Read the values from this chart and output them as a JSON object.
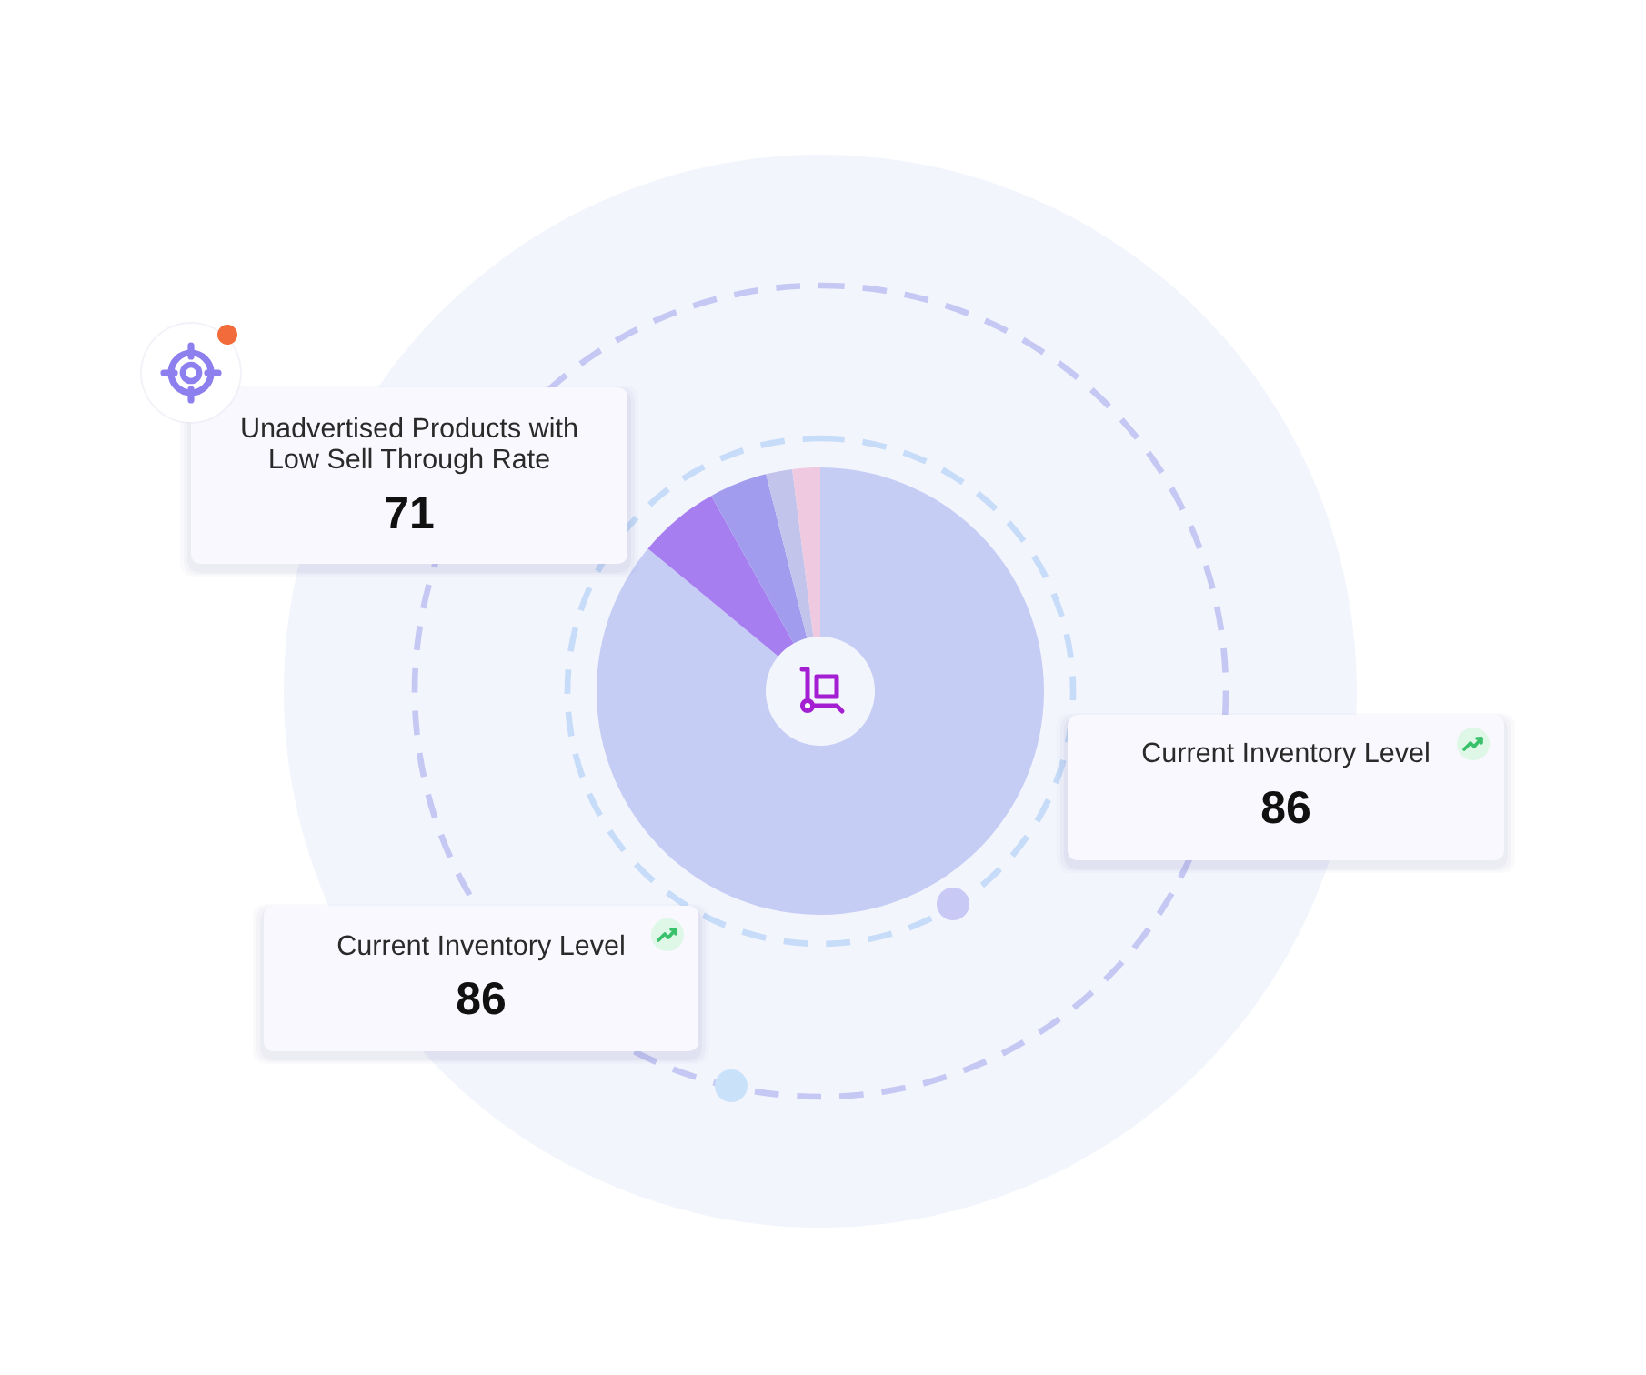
{
  "chart_data": [
    {
      "type": "donut",
      "categories": [
        null,
        null,
        null,
        null,
        null
      ],
      "values": [
        86.0,
        5.9,
        4.2,
        1.9,
        2.0
      ],
      "colors": [
        "#c5cdf5",
        "#a77ef0",
        "#a29cee",
        "#c3c4ec",
        "#efc9df"
      ]
    },
    {
      "type": "other",
      "title": "Unadvertised Products with Low Sell Through Rate",
      "annotations": [
        "71"
      ]
    },
    {
      "type": "other",
      "title": "Current Inventory Level",
      "annotations": [
        "86"
      ]
    },
    {
      "type": "other",
      "title": "Current Inventory Level",
      "annotations": [
        "86"
      ]
    }
  ]
}
